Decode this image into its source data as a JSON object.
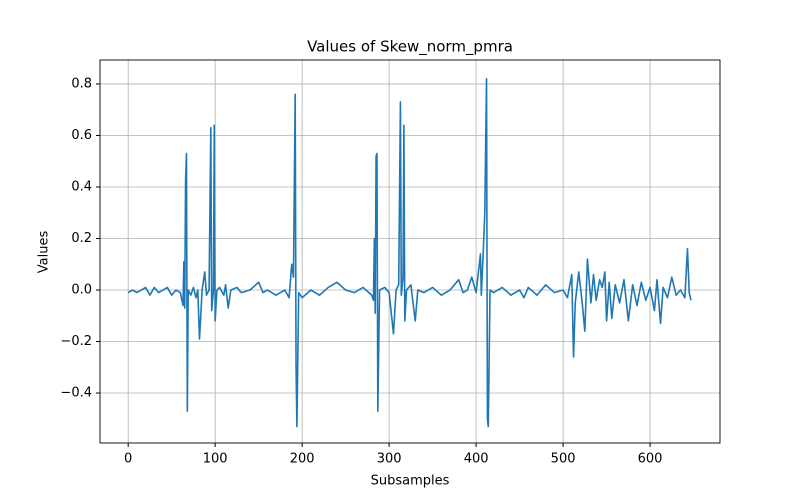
{
  "chart_data": {
    "type": "line",
    "title": "Values of Skew_norm_pmra",
    "xlabel": "Subsamples",
    "ylabel": "Values",
    "color": "#1f77b4",
    "grid": true,
    "xlim": [
      -32.4,
      680.4
    ],
    "ylim": [
      -0.594,
      0.893
    ],
    "xticks": [
      0,
      100,
      200,
      300,
      400,
      500,
      600
    ],
    "yticks": [
      {
        "value": -0.4,
        "label": "−0.4"
      },
      {
        "value": -0.2,
        "label": "−0.2"
      },
      {
        "value": 0,
        "label": "0.0"
      },
      0.2,
      0.4,
      0.6,
      0.8
    ],
    "x": [
      0,
      5,
      10,
      15,
      20,
      25,
      30,
      35,
      40,
      45,
      50,
      55,
      60,
      63,
      64,
      65,
      66,
      67,
      68,
      69,
      72,
      75,
      78,
      80,
      82,
      85,
      88,
      90,
      93,
      95,
      96,
      98,
      99,
      100,
      102,
      105,
      110,
      112,
      115,
      118,
      125,
      130,
      140,
      150,
      155,
      160,
      170,
      180,
      185,
      188,
      190,
      192,
      193,
      194,
      196,
      200,
      210,
      220,
      230,
      240,
      250,
      260,
      270,
      280,
      282,
      283,
      284,
      285,
      286,
      287,
      289,
      295,
      300,
      305,
      308,
      311,
      313,
      314,
      316,
      317,
      318,
      320,
      325,
      330,
      333,
      340,
      350,
      360,
      370,
      380,
      385,
      390,
      395,
      400,
      405,
      406,
      408,
      410,
      412,
      413,
      414,
      416,
      420,
      430,
      440,
      450,
      455,
      460,
      470,
      480,
      490,
      500,
      505,
      510,
      512,
      514,
      518,
      522,
      525,
      528,
      532,
      535,
      538,
      542,
      545,
      548,
      550,
      553,
      556,
      560,
      565,
      570,
      575,
      580,
      585,
      590,
      595,
      600,
      605,
      608,
      612,
      615,
      620,
      625,
      630,
      635,
      640,
      643,
      645,
      647
    ],
    "values": [
      -0.01,
      0.0,
      -0.01,
      0.0,
      0.01,
      -0.02,
      0.01,
      -0.01,
      0.0,
      0.01,
      -0.02,
      0.0,
      -0.01,
      -0.06,
      0.11,
      -0.07,
      0.43,
      0.53,
      -0.47,
      0.0,
      -0.02,
      0.01,
      -0.03,
      0.0,
      -0.19,
      0.0,
      0.07,
      -0.02,
      0.0,
      0.63,
      -0.08,
      0.0,
      0.64,
      -0.12,
      0.0,
      0.01,
      -0.02,
      0.02,
      -0.07,
      0.0,
      0.01,
      -0.01,
      0.0,
      0.03,
      -0.01,
      0.0,
      -0.02,
      0.0,
      -0.03,
      0.1,
      0.05,
      0.76,
      -0.3,
      -0.53,
      -0.01,
      -0.03,
      0.0,
      -0.02,
      0.01,
      0.03,
      0.0,
      -0.01,
      0.01,
      -0.02,
      -0.04,
      0.2,
      -0.09,
      0.52,
      0.53,
      -0.47,
      0.0,
      0.01,
      -0.01,
      -0.17,
      0.0,
      0.02,
      0.73,
      -0.02,
      0.05,
      0.64,
      -0.12,
      0.0,
      0.02,
      -0.12,
      0.0,
      -0.01,
      0.01,
      -0.02,
      0.0,
      0.04,
      -0.01,
      0.0,
      0.05,
      -0.01,
      0.14,
      -0.02,
      0.13,
      0.3,
      0.82,
      -0.5,
      -0.53,
      0.0,
      -0.01,
      0.01,
      -0.02,
      0.0,
      -0.03,
      0.01,
      -0.02,
      0.02,
      -0.01,
      0.0,
      -0.03,
      0.06,
      -0.26,
      -0.05,
      0.07,
      -0.05,
      -0.16,
      0.12,
      -0.05,
      0.06,
      -0.04,
      0.04,
      0.01,
      0.07,
      -0.12,
      0.03,
      -0.11,
      0.02,
      -0.05,
      0.04,
      -0.12,
      0.02,
      -0.06,
      0.03,
      -0.04,
      0.01,
      -0.08,
      0.04,
      -0.13,
      0.01,
      -0.03,
      0.05,
      -0.02,
      0.0,
      -0.03,
      0.16,
      -0.01,
      -0.04
    ]
  }
}
